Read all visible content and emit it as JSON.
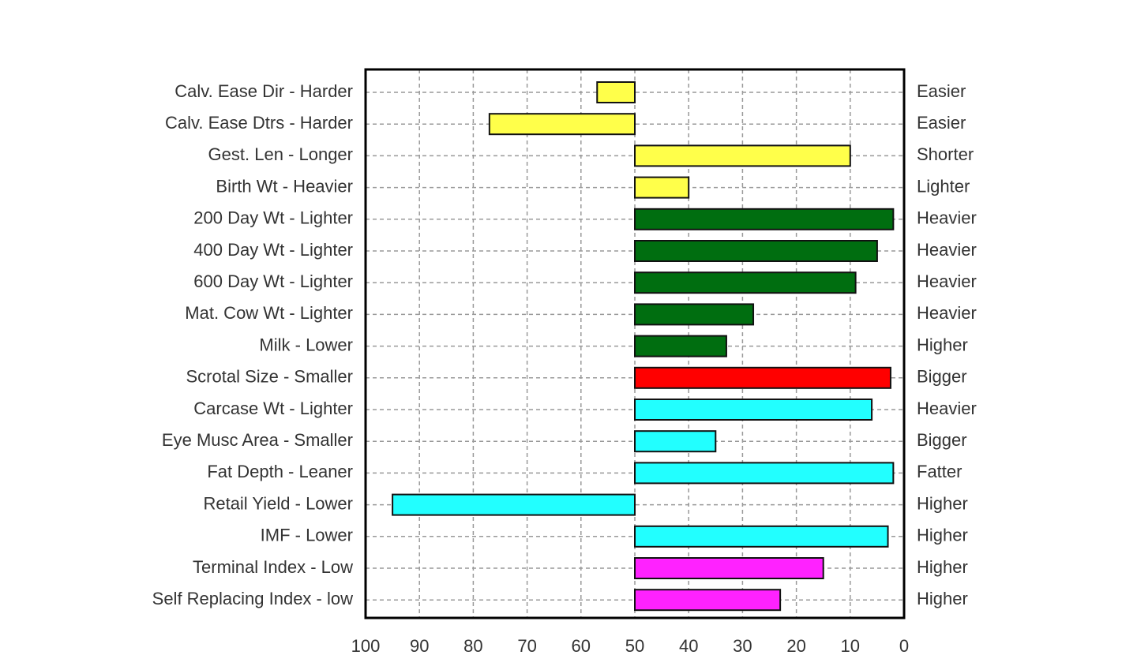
{
  "chart_data": {
    "type": "hbar",
    "categories": [
      "Calv. Ease Dir - Harder",
      "Calv. Ease Dtrs - Harder",
      "Gest. Len - Longer",
      "Birth Wt - Heavier",
      "200 Day Wt - Lighter",
      "400 Day Wt - Lighter",
      "600 Day Wt - Lighter",
      "Mat. Cow Wt - Lighter",
      "Milk - Lower",
      "Scrotal Size - Smaller",
      "Carcase Wt - Lighter",
      "Eye Musc Area - Smaller",
      "Fat Depth - Leaner",
      "Retail Yield - Lower",
      "IMF - Lower",
      "Terminal Index - Low",
      "Self Replacing Index - low"
    ],
    "right_labels": [
      "Easier",
      "Easier",
      "Shorter",
      "Lighter",
      "Heavier",
      "Heavier",
      "Heavier",
      "Heavier",
      "Higher",
      "Bigger",
      "Heavier",
      "Bigger",
      "Fatter",
      "Higher",
      "Higher",
      "Higher",
      "Higher"
    ],
    "values": [
      57,
      77,
      10,
      40,
      2,
      5,
      9,
      28,
      33,
      2.5,
      6,
      35,
      2,
      95,
      3,
      15,
      23
    ],
    "colors": [
      "#ffff4a",
      "#ffff4a",
      "#ffff4a",
      "#ffff4a",
      "#006e10",
      "#006e10",
      "#006e10",
      "#006e10",
      "#006e10",
      "#ff0000",
      "#22ffff",
      "#22ffff",
      "#22ffff",
      "#22ffff",
      "#22ffff",
      "#ff22ff",
      "#ff22ff"
    ],
    "base": 50,
    "xlim": [
      100,
      0
    ],
    "xticks": [
      100,
      90,
      80,
      70,
      60,
      50,
      40,
      30,
      20,
      10,
      0
    ],
    "grid": true
  }
}
